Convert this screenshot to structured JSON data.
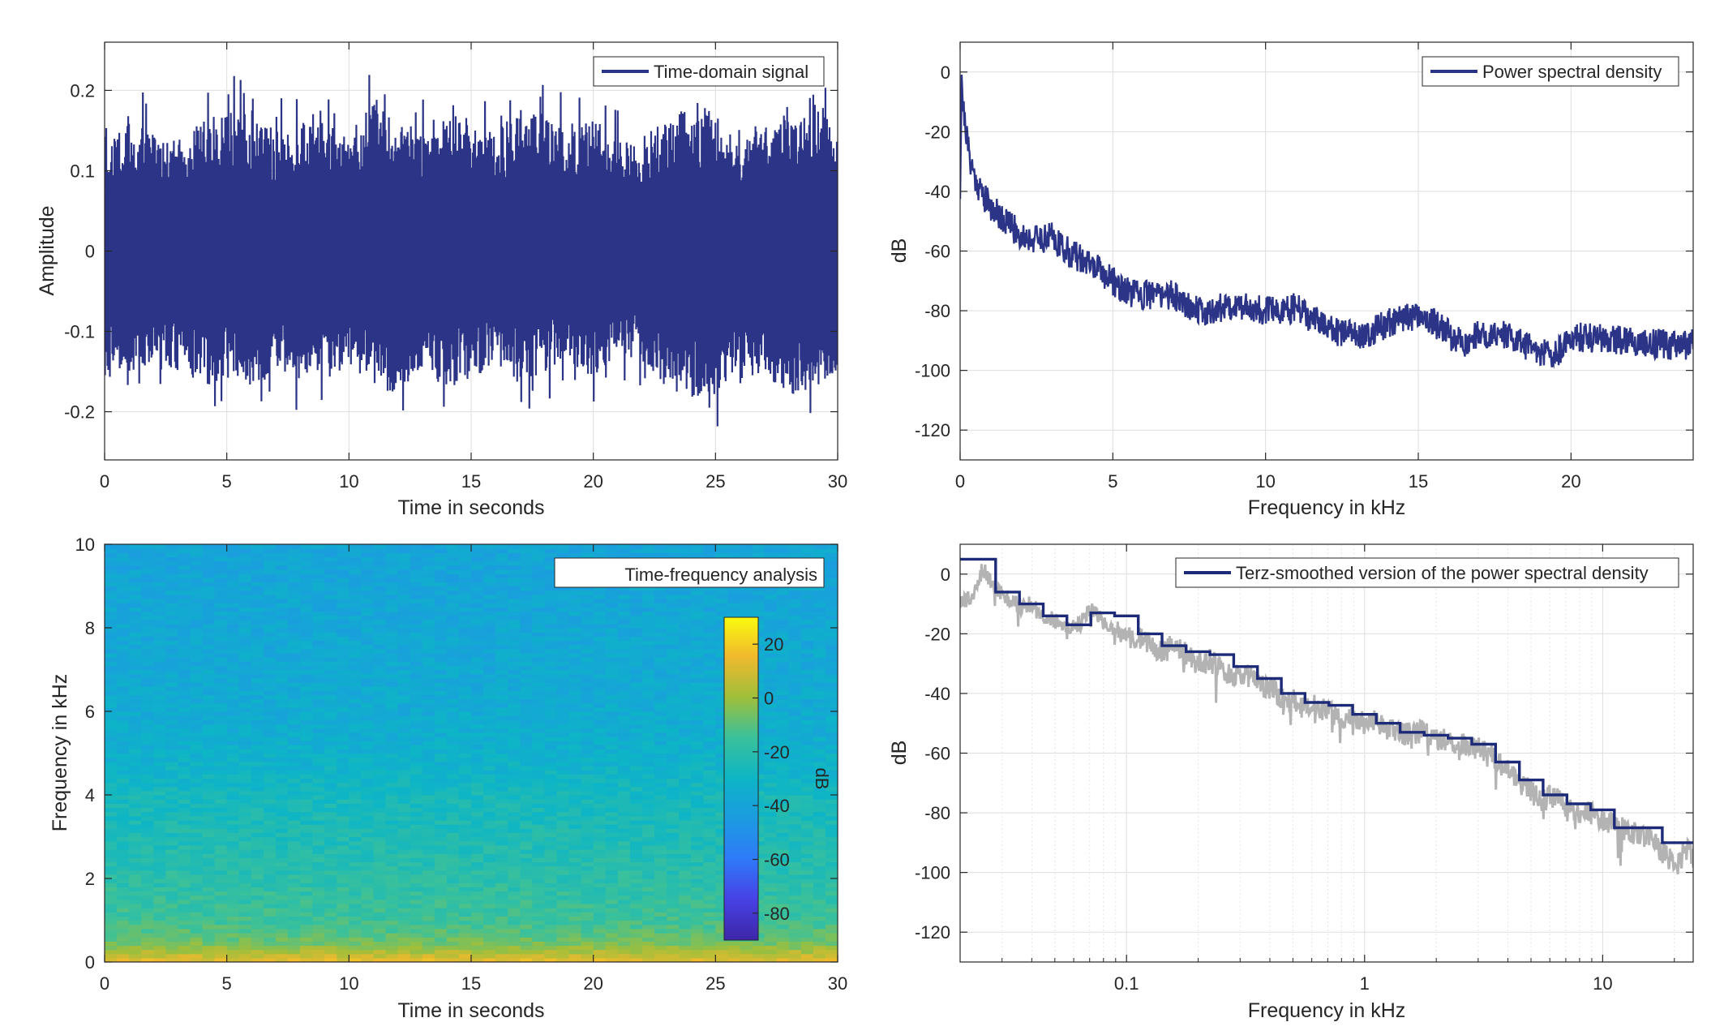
{
  "colors": {
    "signal": "#2b3486",
    "smoothed": "#1d2a78",
    "raw_psd": "#b3b3b3",
    "grid": "#dedede",
    "axis": "#262626"
  },
  "chart_data": [
    {
      "id": "time-domain",
      "type": "line",
      "xlabel": "Time in seconds",
      "ylabel": "Amplitude",
      "xlim": [
        0,
        30
      ],
      "ylim": [
        -0.26,
        0.26
      ],
      "xticks": [
        0,
        5,
        10,
        15,
        20,
        25,
        30
      ],
      "xtick_labels": [
        "0",
        "5",
        "10",
        "15",
        "20",
        "25",
        "30"
      ],
      "yticks": [
        -0.2,
        -0.1,
        0,
        0.1,
        0.2
      ],
      "ytick_labels": [
        "-0.2",
        "-0.1",
        "0",
        "0.1",
        "0.2"
      ],
      "grid": true,
      "legend": {
        "position": "top-right",
        "entries": [
          "Time-domain signal"
        ]
      },
      "series": [
        {
          "name": "Time-domain signal",
          "envelope_upper": [
            [
              0,
              0.12
            ],
            [
              1,
              0.17
            ],
            [
              2,
              0.15
            ],
            [
              3,
              0.14
            ],
            [
              4,
              0.16
            ],
            [
              5,
              0.18
            ],
            [
              6,
              0.17
            ],
            [
              7,
              0.15
            ],
            [
              8,
              0.16
            ],
            [
              9,
              0.18
            ],
            [
              10,
              0.14
            ],
            [
              11,
              0.19
            ],
            [
              12,
              0.18
            ],
            [
              13,
              0.15
            ],
            [
              14,
              0.18
            ],
            [
              15,
              0.17
            ],
            [
              16,
              0.15
            ],
            [
              17,
              0.18
            ],
            [
              18,
              0.17
            ],
            [
              19,
              0.16
            ],
            [
              20,
              0.17
            ],
            [
              21,
              0.14
            ],
            [
              22,
              0.13
            ],
            [
              23,
              0.17
            ],
            [
              24,
              0.19
            ],
            [
              25,
              0.17
            ],
            [
              26,
              0.13
            ],
            [
              27,
              0.17
            ],
            [
              28,
              0.18
            ],
            [
              29,
              0.2
            ],
            [
              30,
              0.15
            ]
          ],
          "envelope_lower": [
            [
              0,
              -0.16
            ],
            [
              1,
              -0.15
            ],
            [
              2,
              -0.14
            ],
            [
              3,
              -0.15
            ],
            [
              4,
              -0.17
            ],
            [
              5,
              -0.16
            ],
            [
              6,
              -0.18
            ],
            [
              7,
              -0.15
            ],
            [
              8,
              -0.16
            ],
            [
              9,
              -0.15
            ],
            [
              10,
              -0.14
            ],
            [
              11,
              -0.17
            ],
            [
              12,
              -0.19
            ],
            [
              13,
              -0.15
            ],
            [
              14,
              -0.17
            ],
            [
              15,
              -0.16
            ],
            [
              16,
              -0.14
            ],
            [
              17,
              -0.17
            ],
            [
              18,
              -0.15
            ],
            [
              19,
              -0.14
            ],
            [
              20,
              -0.16
            ],
            [
              21,
              -0.13
            ],
            [
              22,
              -0.14
            ],
            [
              23,
              -0.17
            ],
            [
              24,
              -0.19
            ],
            [
              25,
              -0.18
            ],
            [
              26,
              -0.14
            ],
            [
              27,
              -0.16
            ],
            [
              28,
              -0.18
            ],
            [
              29,
              -0.17
            ],
            [
              30,
              -0.16
            ]
          ]
        }
      ]
    },
    {
      "id": "psd",
      "type": "line",
      "xlabel": "Frequency in kHz",
      "ylabel": "dB",
      "xlim": [
        0,
        24
      ],
      "ylim": [
        -130,
        10
      ],
      "xticks": [
        0,
        5,
        10,
        15,
        20
      ],
      "xtick_labels": [
        "0",
        "5",
        "10",
        "15",
        "20"
      ],
      "yticks": [
        -120,
        -100,
        -80,
        -60,
        -40,
        -20,
        0
      ],
      "ytick_labels": [
        "-120",
        "-100",
        "-80",
        "-60",
        "-40",
        "-20",
        "0"
      ],
      "grid": true,
      "legend": {
        "position": "top-right",
        "entries": [
          "Power spectral density"
        ]
      },
      "series": [
        {
          "name": "Power spectral density",
          "x": [
            0,
            0.05,
            0.1,
            0.2,
            0.3,
            0.5,
            0.8,
            1,
            1.5,
            2,
            2.5,
            3,
            3.5,
            4,
            4.5,
            5,
            5.5,
            6,
            6.5,
            7,
            7.5,
            8,
            8.5,
            9,
            9.5,
            10,
            10.5,
            11,
            11.5,
            12,
            12.5,
            13,
            13.5,
            14,
            14.5,
            15,
            15.5,
            16,
            16.5,
            17,
            17.5,
            18,
            18.5,
            19,
            19.5,
            20,
            20.5,
            21,
            21.5,
            22,
            22.5,
            23,
            23.5,
            24
          ],
          "values": [
            -40,
            0,
            -12,
            -20,
            -28,
            -36,
            -42,
            -45,
            -50,
            -55,
            -56,
            -55,
            -60,
            -63,
            -66,
            -70,
            -74,
            -75,
            -74,
            -75,
            -78,
            -81,
            -79,
            -78,
            -79,
            -80,
            -80,
            -79,
            -83,
            -85,
            -88,
            -88,
            -87,
            -84,
            -83,
            -81,
            -84,
            -88,
            -91,
            -88,
            -87,
            -89,
            -92,
            -94,
            -95,
            -89,
            -89,
            -89,
            -90,
            -90,
            -91,
            -91,
            -92,
            -91
          ],
          "band_width_db": 5
        }
      ]
    },
    {
      "id": "time-frequency",
      "type": "heatmap",
      "xlabel": "Time in seconds",
      "ylabel": "Frequency in kHz",
      "xlim": [
        0,
        30
      ],
      "ylim": [
        0,
        10
      ],
      "xticks": [
        0,
        5,
        10,
        15,
        20,
        25,
        30
      ],
      "xtick_labels": [
        "0",
        "5",
        "10",
        "15",
        "20",
        "25",
        "30"
      ],
      "yticks": [
        0,
        2,
        4,
        6,
        8,
        10
      ],
      "ytick_labels": [
        "0",
        "2",
        "4",
        "6",
        "8",
        "10"
      ],
      "legend": {
        "position": "top-right",
        "entries": [
          "Time-frequency analysis"
        ]
      },
      "colorbar": {
        "label": "dB",
        "range": [
          -90,
          30
        ],
        "ticks": [
          20,
          0,
          -20,
          -40,
          -60,
          -80
        ],
        "tick_labels": [
          "20",
          "0",
          "-20",
          "-40",
          "-60",
          "-80"
        ],
        "colormap": "parula"
      },
      "level_by_frequency_khz": [
        [
          0,
          15
        ],
        [
          0.2,
          5
        ],
        [
          0.5,
          -8
        ],
        [
          1,
          -15
        ],
        [
          2,
          -20
        ],
        [
          3,
          -24
        ],
        [
          4,
          -27
        ],
        [
          5,
          -33
        ],
        [
          6,
          -36
        ],
        [
          8,
          -38
        ],
        [
          10,
          -40
        ]
      ]
    },
    {
      "id": "terz-smoothed",
      "type": "line",
      "xlabel": "Frequency in kHz",
      "ylabel": "dB",
      "xscale": "log",
      "xlim": [
        0.02,
        24
      ],
      "ylim": [
        -130,
        10
      ],
      "xticks": [
        0.1,
        1,
        10
      ],
      "xtick_labels": [
        "0.1",
        "1",
        "10"
      ],
      "yticks": [
        -120,
        -100,
        -80,
        -60,
        -40,
        -20,
        0
      ],
      "ytick_labels": [
        "-120",
        "-100",
        "-80",
        "-60",
        "-40",
        "-20",
        "0"
      ],
      "grid": true,
      "legend": {
        "position": "top-right",
        "entries": [
          "Terz-smoothed version of the power spectral density"
        ]
      },
      "series": [
        {
          "name": "Terz-smoothed version of the power spectral density",
          "band_edges_khz": [
            0.02,
            0.0282,
            0.0355,
            0.0447,
            0.0562,
            0.0708,
            0.0891,
            0.112,
            0.141,
            0.178,
            0.224,
            0.282,
            0.355,
            0.447,
            0.562,
            0.708,
            0.891,
            1.12,
            1.41,
            1.78,
            2.24,
            2.82,
            3.55,
            4.47,
            5.62,
            7.08,
            8.91,
            11.2,
            17.8,
            24
          ],
          "values": [
            5,
            -6,
            -10,
            -14,
            -17,
            -13,
            -14,
            -20,
            -24,
            -26,
            -27,
            -31,
            -35,
            -40,
            -43,
            -44,
            -47,
            -50,
            -53,
            -54,
            -55,
            -57,
            -63,
            -69,
            -74,
            -77,
            -79,
            -85,
            -90
          ]
        },
        {
          "name": "",
          "x": [
            0.02,
            0.022,
            0.025,
            0.028,
            0.032,
            0.036,
            0.04,
            0.045,
            0.05,
            0.056,
            0.063,
            0.071,
            0.08,
            0.09,
            0.1,
            0.112,
            0.126,
            0.141,
            0.158,
            0.178,
            0.2,
            0.224,
            0.251,
            0.282,
            0.316,
            0.355,
            0.398,
            0.447,
            0.501,
            0.562,
            0.631,
            0.708,
            0.794,
            0.891,
            1,
            1.12,
            1.26,
            1.41,
            1.58,
            1.78,
            2,
            2.24,
            2.51,
            2.82,
            3.16,
            3.55,
            3.98,
            4.47,
            5.01,
            5.62,
            6.31,
            7.08,
            7.94,
            8.91,
            10,
            11.2,
            12.6,
            14.1,
            15.8,
            17.8,
            20,
            22.4,
            24
          ],
          "values": [
            -10,
            -8,
            2,
            -5,
            -8,
            -11,
            -10,
            -14,
            -16,
            -19,
            -17,
            -12,
            -16,
            -18,
            -22,
            -21,
            -24,
            -26,
            -24,
            -27,
            -30,
            -29,
            -32,
            -34,
            -33,
            -37,
            -38,
            -41,
            -42,
            -45,
            -44,
            -46,
            -48,
            -47,
            -50,
            -49,
            -52,
            -53,
            -54,
            -52,
            -56,
            -55,
            -57,
            -58,
            -59,
            -62,
            -66,
            -70,
            -73,
            -76,
            -74,
            -79,
            -81,
            -80,
            -83,
            -84,
            -86,
            -87,
            -88,
            -93,
            -97,
            -92,
            -95
          ]
        }
      ]
    }
  ]
}
